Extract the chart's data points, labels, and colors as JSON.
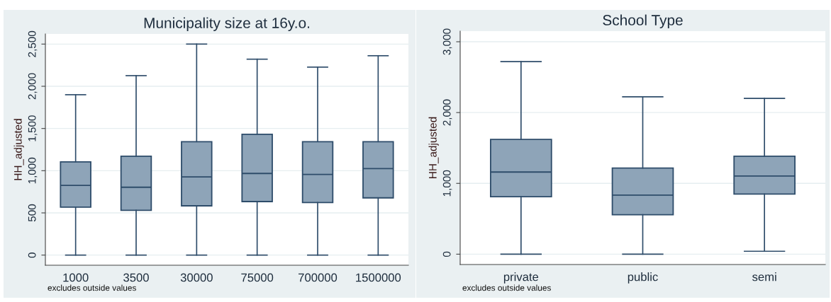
{
  "chart_data": [
    {
      "type": "box",
      "title": "Municipality size at 16y.o.",
      "ylabel": "HH_adjusted",
      "categories": [
        "1000",
        "3500",
        "30000",
        "75000",
        "700000",
        "1500000"
      ],
      "color": "#8ea4b8",
      "boxes": [
        {
          "low": 0,
          "q1": 568,
          "median": 826,
          "q3": 1105,
          "high": 1900
        },
        {
          "low": 0,
          "q1": 531,
          "median": 804,
          "q3": 1171,
          "high": 2126
        },
        {
          "low": 0,
          "q1": 584,
          "median": 926,
          "q3": 1344,
          "high": 2500
        },
        {
          "low": 0,
          "q1": 634,
          "median": 967,
          "q3": 1432,
          "high": 2321
        },
        {
          "low": 0,
          "q1": 622,
          "median": 955,
          "q3": 1344,
          "high": 2227
        },
        {
          "low": 0,
          "q1": 678,
          "median": 1024,
          "q3": 1344,
          "high": 2362
        }
      ],
      "ylim": [
        -120,
        2620
      ],
      "yticks": [
        {
          "value": 0,
          "label": "0"
        },
        {
          "value": 500,
          "label": "500"
        },
        {
          "value": 1000,
          "label": "1,000"
        },
        {
          "value": 1500,
          "label": "1,500"
        },
        {
          "value": 2000,
          "label": "2,000"
        },
        {
          "value": 2500,
          "label": "2,500"
        }
      ],
      "grid": "y",
      "annotations": [
        "excludes outside values"
      ]
    },
    {
      "type": "box",
      "title": "School Type",
      "ylabel": "HH_adjusted",
      "categories": [
        "private",
        "public",
        "semi"
      ],
      "color": "#8ea4b8",
      "boxes": [
        {
          "low": 0,
          "q1": 812,
          "median": 1160,
          "q3": 1620,
          "high": 2720
        },
        {
          "low": 0,
          "q1": 557,
          "median": 834,
          "q3": 1216,
          "high": 2222
        },
        {
          "low": 41,
          "q1": 849,
          "median": 1104,
          "q3": 1384,
          "high": 2200
        }
      ],
      "ylim": [
        -146,
        3150
      ],
      "yticks": [
        {
          "value": 0,
          "label": "0"
        },
        {
          "value": 1000,
          "label": "1,000"
        },
        {
          "value": 2000,
          "label": "2,000"
        },
        {
          "value": 3000,
          "label": "3,000"
        }
      ],
      "grid": "y",
      "annotations": [
        "excludes outside values"
      ]
    }
  ]
}
